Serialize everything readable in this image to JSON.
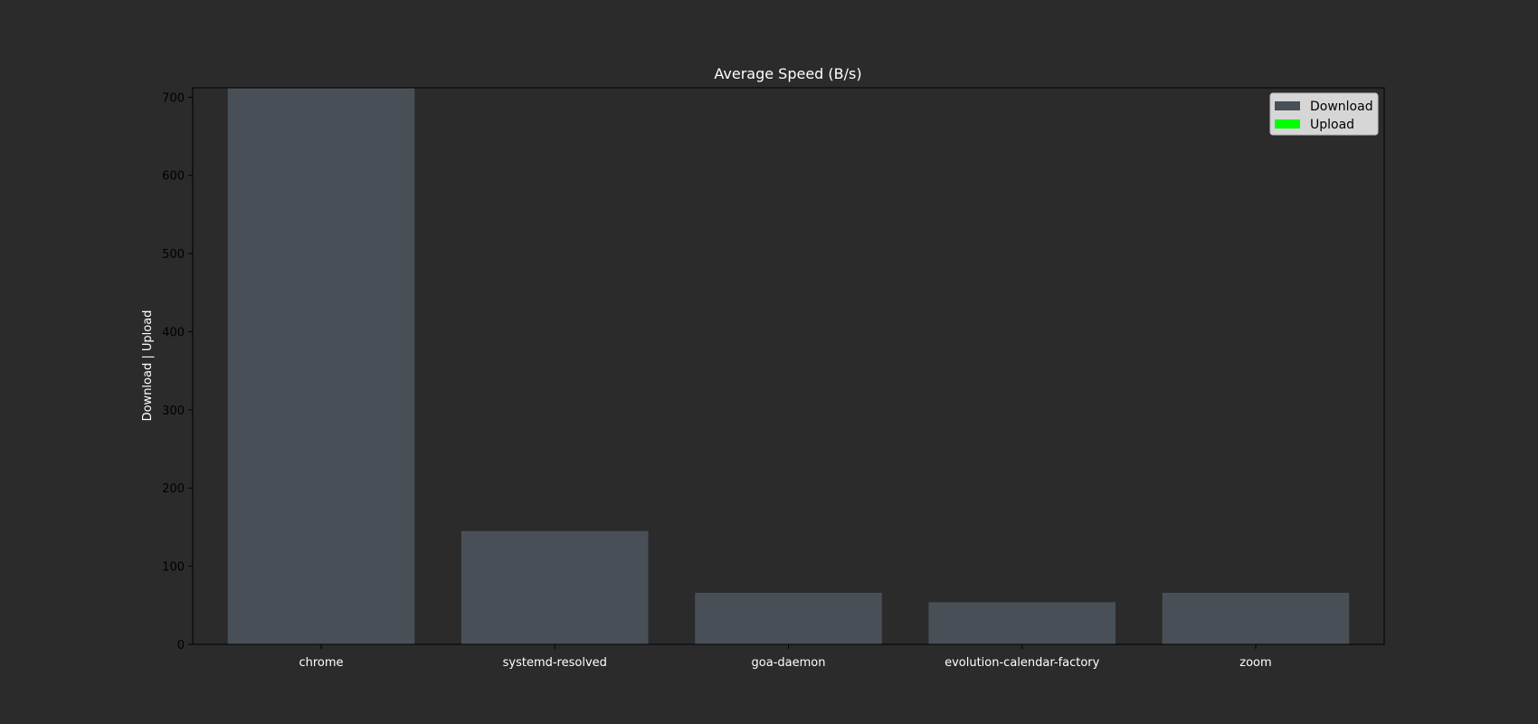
{
  "chart_data": {
    "type": "bar",
    "title": "Average Speed (B/s)",
    "xlabel": "",
    "ylabel": "Download | Upload",
    "categories": [
      "chrome",
      "systemd-resolved",
      "goa-daemon",
      "evolution-calendar-factory",
      "zoom"
    ],
    "series": [
      {
        "name": "Download",
        "values": [
          712,
          145,
          66,
          54,
          66
        ],
        "color": "#484f57"
      },
      {
        "name": "Upload",
        "values": [
          0,
          0,
          0,
          0,
          0
        ],
        "color": "#00ff00"
      }
    ],
    "ylim": [
      0,
      712
    ],
    "yticks": [
      0,
      100,
      200,
      300,
      400,
      500,
      600,
      700
    ],
    "grid": false,
    "legend_position": "top-right",
    "colors": {
      "background": "#2b2b2b",
      "axes_face": "#2b2b2b",
      "axes_edge": "#000000",
      "legend_bg": "#d6d6d6"
    }
  }
}
